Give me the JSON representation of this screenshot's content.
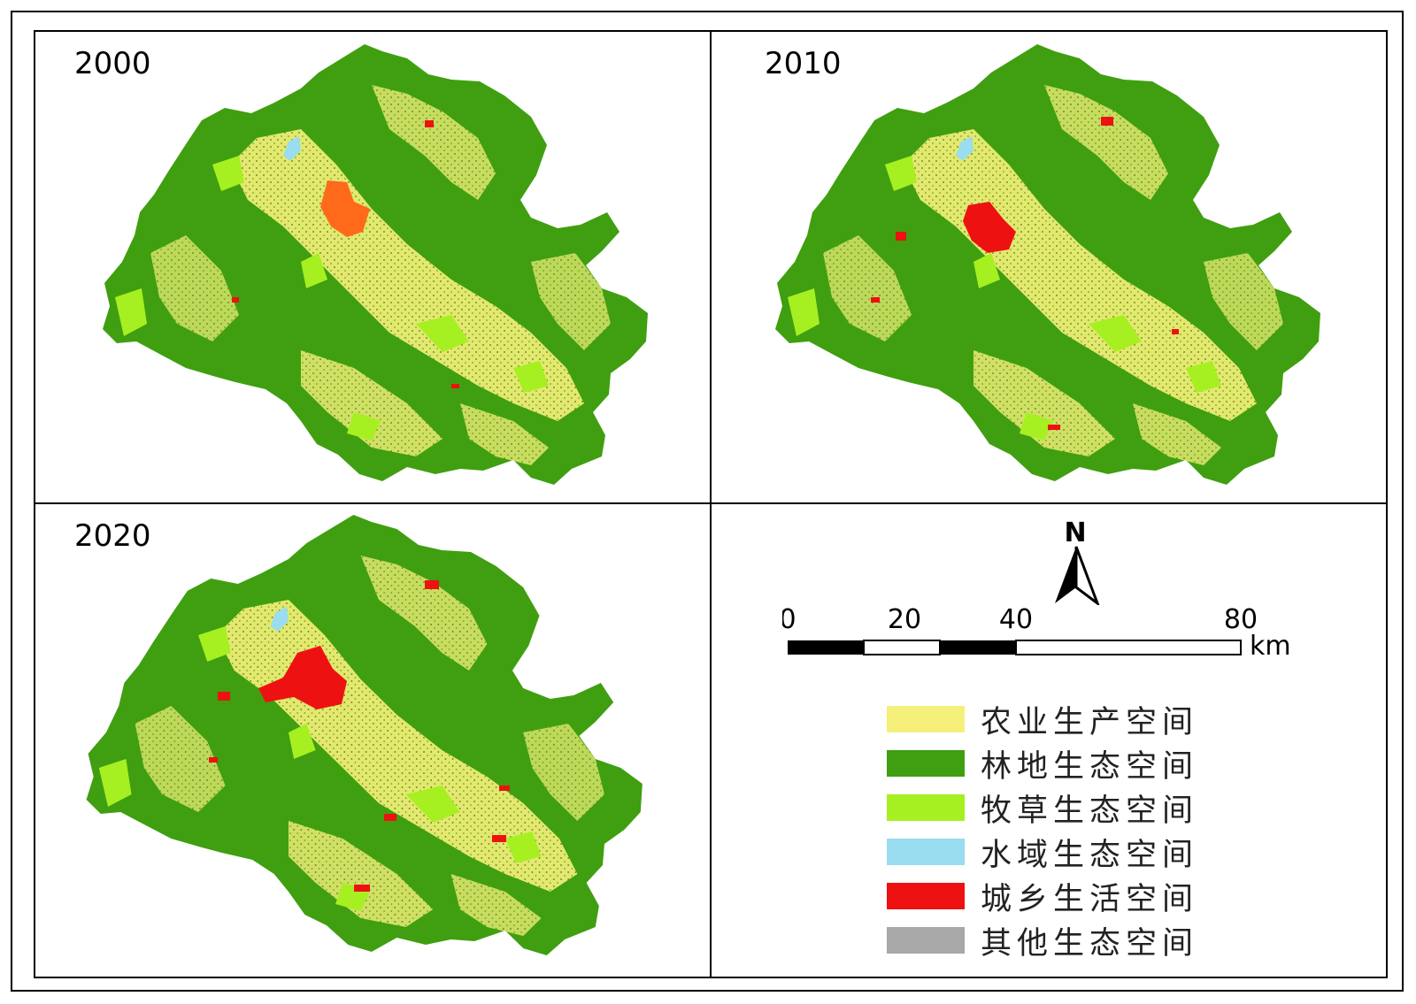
{
  "colors": {
    "agriculture": "#f5f07a",
    "forest": "#3f9f10",
    "grassland": "#a6f021",
    "water": "#9adcf0",
    "urban": "#ee1111",
    "urban_2000": "#ff6a1a",
    "other": "#a8a8a8",
    "frame": "#000000"
  },
  "panels": [
    {
      "id": "panel-2000",
      "year": "2000"
    },
    {
      "id": "panel-2010",
      "year": "2010"
    },
    {
      "id": "panel-2020",
      "year": "2020"
    }
  ],
  "north_arrow": {
    "label": "N"
  },
  "scale_bar": {
    "ticks": [
      "0",
      "20",
      "40",
      "80"
    ],
    "unit": "km"
  },
  "legend": {
    "items": [
      {
        "label": "农业生产空间",
        "color": "#f5f07a",
        "icon": "agriculture-swatch"
      },
      {
        "label": "林地生态空间",
        "color": "#3f9f10",
        "icon": "forest-swatch"
      },
      {
        "label": "牧草生态空间",
        "color": "#a6f021",
        "icon": "grassland-swatch"
      },
      {
        "label": "水域生态空间",
        "color": "#9adcf0",
        "icon": "water-swatch"
      },
      {
        "label": "城乡生活空间",
        "color": "#ee1111",
        "icon": "urban-swatch"
      },
      {
        "label": "其他生态空间",
        "color": "#a8a8a8",
        "icon": "other-swatch"
      }
    ]
  }
}
